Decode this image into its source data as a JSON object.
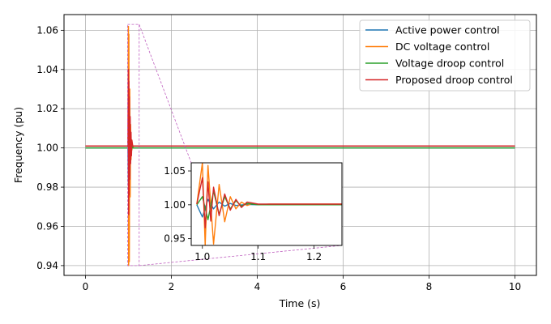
{
  "chart_data": {
    "type": "line",
    "title": "",
    "xlabel": "Time (s)",
    "ylabel": "Frequency (pu)",
    "xlim": [
      -0.5,
      10.5
    ],
    "ylim": [
      0.935,
      1.068
    ],
    "xticks": [
      0,
      2,
      4,
      6,
      8,
      10
    ],
    "xtick_labels": [
      "0",
      "2",
      "4",
      "6",
      "8",
      "10"
    ],
    "yticks": [
      0.94,
      0.96,
      0.98,
      1.0,
      1.02,
      1.04,
      1.06
    ],
    "ytick_labels": [
      "0.94",
      "0.96",
      "0.98",
      "1.00",
      "1.02",
      "1.04",
      "1.06"
    ],
    "grid": true,
    "legend_position": "top-right",
    "series": [
      {
        "name": "Active power control",
        "color": "#1f77b4",
        "x": [
          0,
          0.99,
          1.0,
          1.01,
          1.02,
          1.03,
          1.04,
          1.05,
          1.06,
          1.08,
          1.1,
          1.15,
          1.2,
          2,
          4,
          6,
          8,
          10
        ],
        "y": [
          1.0,
          1.0,
          0.982,
          1.008,
          0.994,
          1.004,
          0.998,
          1.002,
          0.999,
          1.0005,
          1.0,
          1.0,
          1.0,
          1.0,
          1.0,
          1.0,
          1.0,
          1.0
        ]
      },
      {
        "name": "DC voltage control",
        "color": "#ff7f0e",
        "x": [
          0,
          0.99,
          1.0,
          1.005,
          1.01,
          1.02,
          1.03,
          1.04,
          1.05,
          1.06,
          1.07,
          1.08,
          1.09,
          1.1,
          1.12,
          1.15,
          1.2,
          1.25,
          2,
          4,
          6,
          8,
          10
        ],
        "y": [
          1.001,
          1.001,
          1.062,
          0.94,
          1.058,
          0.942,
          1.03,
          0.975,
          1.012,
          0.994,
          1.004,
          0.999,
          1.002,
          1.0,
          1.001,
          1.001,
          1.001,
          1.001,
          1.001,
          1.001,
          1.001,
          1.001,
          1.001
        ]
      },
      {
        "name": "Voltage droop control",
        "color": "#2ca02c",
        "x": [
          0,
          0.99,
          1.0,
          1.01,
          1.02,
          1.03,
          1.04,
          1.05,
          1.06,
          1.07,
          1.08,
          1.1,
          1.15,
          1.2,
          2,
          4,
          6,
          8,
          10
        ],
        "y": [
          1.0,
          1.0,
          1.012,
          0.978,
          1.02,
          0.986,
          1.012,
          0.994,
          1.006,
          0.998,
          1.002,
          1.0,
          1.0,
          1.0,
          1.0,
          1.0,
          1.0,
          1.0,
          1.0
        ]
      },
      {
        "name": "Proposed droop control",
        "color": "#d62728",
        "x": [
          0,
          0.99,
          1.0,
          1.005,
          1.01,
          1.015,
          1.02,
          1.03,
          1.04,
          1.05,
          1.06,
          1.07,
          1.08,
          1.1,
          1.15,
          1.2,
          2,
          4,
          6,
          8,
          10
        ],
        "y": [
          1.001,
          1.001,
          1.04,
          0.966,
          1.034,
          0.976,
          1.026,
          0.984,
          1.016,
          0.992,
          1.008,
          0.996,
          1.004,
          1.001,
          1.001,
          1.001,
          1.001,
          1.001,
          1.001,
          1.001,
          1.001
        ]
      }
    ],
    "inset": {
      "xlim": [
        0.98,
        1.25
      ],
      "ylim": [
        0.94,
        1.062
      ],
      "xticks": [
        1.0,
        1.1,
        1.2
      ],
      "xtick_labels": [
        "1.0",
        "1.1",
        "1.2"
      ],
      "yticks": [
        0.95,
        1.0,
        1.05
      ],
      "ytick_labels": [
        "0.95",
        "1.00",
        "1.05"
      ],
      "zoom_region": {
        "x": [
          0.98,
          1.25
        ],
        "y": [
          0.94,
          1.063
        ]
      }
    }
  }
}
